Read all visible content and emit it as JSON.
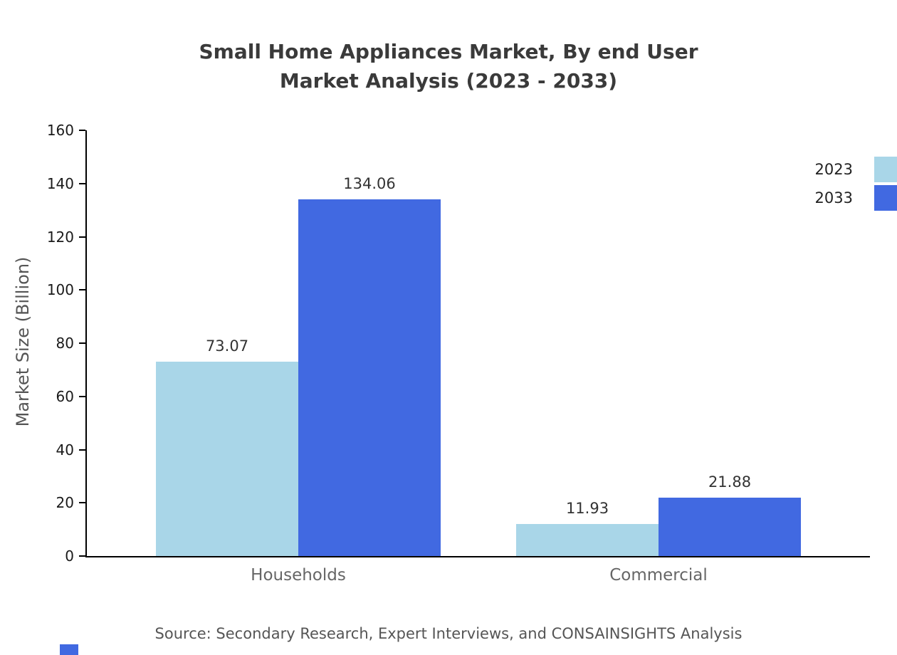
{
  "title": {
    "line1": "Small Home Appliances Market, By end User",
    "line2": "Market Analysis (2023 - 2033)"
  },
  "source": "Source: Secondary Research, Expert Interviews, and CONSAINSIGHTS Analysis",
  "colors": {
    "series_2023": "#a9d6e8",
    "series_2033": "#4169e1",
    "title_text": "#3a3a3a",
    "axis_text": "#555555",
    "watermark": "#4169e1"
  },
  "chart_data": {
    "type": "bar",
    "title": "Small Home Appliances Market, By end User Market Analysis (2023 - 2033)",
    "categories": [
      "Households",
      "Commercial"
    ],
    "series": [
      {
        "name": "2023",
        "color": "#a9d6e8",
        "values": [
          73.07,
          11.93
        ]
      },
      {
        "name": "2033",
        "color": "#4169e1",
        "values": [
          134.06,
          21.88
        ]
      }
    ],
    "value_labels": [
      [
        "73.07",
        "11.93"
      ],
      [
        "134.06",
        "21.88"
      ]
    ],
    "xlabel": "",
    "ylabel": "Market Size (Billion)",
    "ylim": [
      0,
      160
    ],
    "yticks": [
      0,
      20,
      40,
      60,
      80,
      100,
      120,
      140,
      160
    ],
    "grid": false,
    "legend_position": "top-right"
  }
}
